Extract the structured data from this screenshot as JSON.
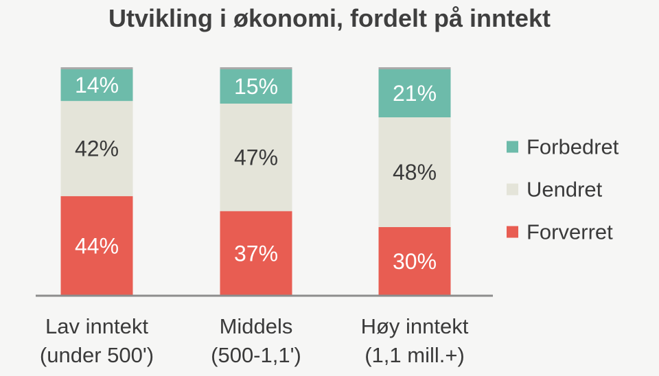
{
  "chart_data": {
    "type": "bar",
    "stacked": true,
    "percent_stacked": true,
    "title": "Utvikling i økonomi, fordelt på inntekt",
    "categories": [
      [
        "Lav inntekt",
        "(under 500')"
      ],
      [
        "Middels",
        "(500-1,1')"
      ],
      [
        "Høy inntekt",
        "(1,1 mill.+)"
      ]
    ],
    "series": [
      {
        "name": "Forverret",
        "values": [
          44,
          37,
          30
        ],
        "color": "#e85d52",
        "label_color": "#ffffff"
      },
      {
        "name": "Uendret",
        "values": [
          42,
          47,
          48
        ],
        "color": "#e4e4d9",
        "label_color": "#3a3a3a"
      },
      {
        "name": "Forbedret",
        "values": [
          14,
          15,
          21
        ],
        "color": "#6dbbaa",
        "label_color": "#ffffff"
      }
    ],
    "value_suffix": "%",
    "legend": {
      "position": "right",
      "order": [
        "Forbedret",
        "Uendret",
        "Forverret"
      ]
    },
    "ylim": [
      0,
      100
    ],
    "grid": false
  }
}
